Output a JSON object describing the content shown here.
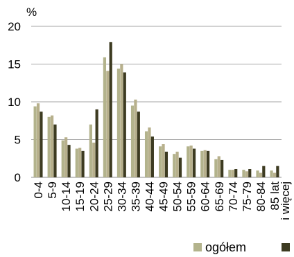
{
  "chart_data": {
    "type": "bar",
    "y_unit_label": "%",
    "ylim": [
      0,
      20
    ],
    "yticks": [
      0,
      5,
      10,
      15,
      20
    ],
    "grid": true,
    "legend_position": "bottom",
    "categories": [
      "0-4",
      "5-9",
      "10-14",
      "15-19",
      "20-24",
      "25-29",
      "30-34",
      "35-39",
      "40-44",
      "45-49",
      "50-54",
      "55-59",
      "60-64",
      "65-69",
      "70-74",
      "75-79",
      "80-84",
      "85 lat i więcej"
    ],
    "series": [
      {
        "name": "ogółem",
        "color": "#b3b38c",
        "values": [
          9.4,
          8.0,
          4.9,
          3.8,
          7.0,
          15.9,
          14.4,
          9.5,
          6.1,
          4.1,
          3.1,
          4.1,
          3.5,
          2.4,
          1.0,
          1.0,
          0.9,
          0.9
        ]
      },
      {
        "name": "",
        "color": "#b7b08c",
        "values": [
          9.8,
          8.2,
          5.3,
          3.9,
          4.6,
          14.1,
          15.0,
          10.3,
          6.6,
          4.4,
          3.4,
          4.2,
          3.6,
          2.8,
          1.0,
          0.8,
          0.6,
          0.6
        ]
      },
      {
        "name": "",
        "color": "#3d3b21",
        "values": [
          8.7,
          7.0,
          4.3,
          3.5,
          9.0,
          17.9,
          13.9,
          8.7,
          5.4,
          3.4,
          2.6,
          3.8,
          3.5,
          2.3,
          1.1,
          1.1,
          1.5,
          1.5
        ]
      }
    ]
  }
}
